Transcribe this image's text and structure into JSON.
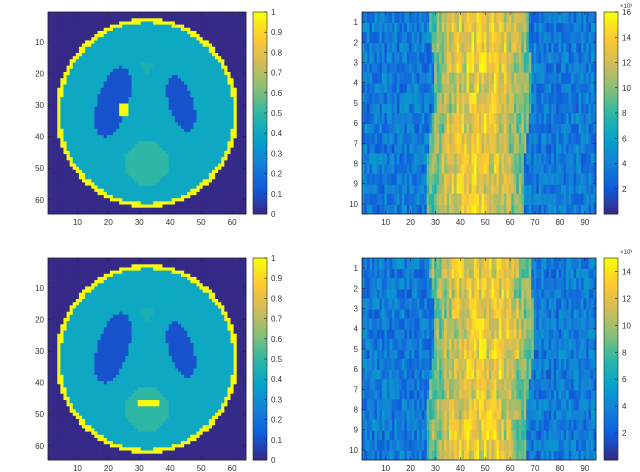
{
  "colormap": {
    "name": "parula",
    "stops": [
      "#352a87",
      "#0f5cdd",
      "#1481d6",
      "#06a4ca",
      "#2eb7a4",
      "#87bf77",
      "#d1bb59",
      "#fec832",
      "#f9fb0e"
    ]
  },
  "chart_data": [
    {
      "type": "heatmap",
      "title": "",
      "xlabel": "",
      "ylabel": "",
      "xlim": [
        0.5,
        64.5
      ],
      "ylim": [
        0.5,
        64.5
      ],
      "xticks": [
        10,
        20,
        30,
        40,
        50,
        60
      ],
      "yticks": [
        10,
        20,
        30,
        40,
        50,
        60
      ],
      "ytick_labels": [
        "10",
        "20",
        "30",
        "40",
        "50",
        "60"
      ],
      "colorbar": {
        "range": [
          0,
          1
        ],
        "ticks": [
          0,
          0.1,
          0.2,
          0.3,
          0.4,
          0.5,
          0.6,
          0.7,
          0.8,
          0.9,
          1
        ],
        "tick_labels": [
          "0",
          "0.1",
          "0.2",
          "0.3",
          "0.4",
          "0.5",
          "0.6",
          "0.7",
          "0.8",
          "0.9",
          "1"
        ]
      },
      "image": "Shepp-Logan phantom, 64 x 64",
      "regions": [
        {
          "shape": "ellipse-ring",
          "value": 1.0,
          "cx": 32.5,
          "cy": 32.5,
          "rx": 29.5,
          "ry": 30.0
        },
        {
          "shape": "ellipse",
          "value": 0.4,
          "cx": 32.5,
          "cy": 32.5,
          "rx": 28.0,
          "ry": 28.6
        },
        {
          "shape": "ellipse",
          "value": 0.1,
          "cx": 21.5,
          "cy": 29.0,
          "rx": 5.0,
          "ry": 11.5,
          "rotation": 18
        },
        {
          "shape": "ellipse",
          "value": 0.1,
          "cx": 43.5,
          "cy": 29.5,
          "rx": 4.0,
          "ry": 9.0,
          "rotation": -18
        },
        {
          "shape": "ellipse",
          "value": 0.5,
          "cx": 32.5,
          "cy": 48.5,
          "rx": 7.0,
          "ry": 7.0
        },
        {
          "shape": "rect",
          "value": 1.0,
          "x0": 23.5,
          "x1": 26.5,
          "y0": 29.5,
          "y1": 33.0
        },
        {
          "shape": "rect",
          "value": 0.45,
          "x0": 31.0,
          "x1": 34.0,
          "y0": 17.0,
          "y1": 18.0
        },
        {
          "shape": "rect",
          "value": 0.45,
          "x0": 32.0,
          "x1": 33.0,
          "y0": 18.0,
          "y1": 20.0
        }
      ]
    },
    {
      "type": "heatmap",
      "title": "",
      "xlabel": "",
      "ylabel": "",
      "xlim": [
        0.5,
        94.5
      ],
      "ylim": [
        0.5,
        10.5
      ],
      "xticks": [
        10,
        20,
        30,
        40,
        50,
        60,
        70,
        80,
        90
      ],
      "yticks": [
        1,
        2,
        3,
        4,
        5,
        6,
        7,
        8,
        9,
        10
      ],
      "ytick_labels": [
        "1",
        "2",
        "3",
        "4",
        "5",
        "6",
        "7",
        "8",
        "9",
        "10"
      ],
      "colorbar": {
        "range": [
          0,
          16
        ],
        "ticks": [
          2,
          4,
          6,
          8,
          10,
          12,
          14,
          16
        ],
        "tick_labels": [
          "2",
          "4",
          "6",
          "8",
          "10",
          "12",
          "14",
          "16"
        ],
        "exponent": "×10³"
      },
      "band": {
        "x_start": 28,
        "x_end": 67
      },
      "rows": 10,
      "cols": 94,
      "seed": 7
    },
    {
      "type": "heatmap",
      "title": "",
      "xlabel": "",
      "ylabel": "",
      "xlim": [
        0.5,
        64.5
      ],
      "ylim": [
        0.5,
        64.5
      ],
      "xticks": [
        10,
        20,
        30,
        40,
        50,
        60
      ],
      "yticks": [
        10,
        20,
        30,
        40,
        50,
        60
      ],
      "ytick_labels": [
        "10",
        "20",
        "30",
        "40",
        "50",
        "60"
      ],
      "colorbar": {
        "range": [
          0,
          1
        ],
        "ticks": [
          0,
          0.1,
          0.2,
          0.3,
          0.4,
          0.5,
          0.6,
          0.7,
          0.8,
          0.9,
          1
        ],
        "tick_labels": [
          "0",
          "0.1",
          "0.2",
          "0.3",
          "0.4",
          "0.5",
          "0.6",
          "0.7",
          "0.8",
          "0.9",
          "1"
        ]
      },
      "image": "Shepp-Logan phantom variant, 64 x 64",
      "regions": [
        {
          "shape": "ellipse-ring",
          "value": 1.0,
          "cx": 32.5,
          "cy": 32.5,
          "rx": 29.5,
          "ry": 30.0
        },
        {
          "shape": "ellipse",
          "value": 0.4,
          "cx": 32.5,
          "cy": 32.5,
          "rx": 28.0,
          "ry": 28.6
        },
        {
          "shape": "ellipse",
          "value": 0.1,
          "cx": 21.5,
          "cy": 29.0,
          "rx": 5.0,
          "ry": 11.5,
          "rotation": 18
        },
        {
          "shape": "ellipse",
          "value": 0.1,
          "cx": 43.5,
          "cy": 29.5,
          "rx": 4.0,
          "ry": 9.0,
          "rotation": -18
        },
        {
          "shape": "ellipse",
          "value": 0.5,
          "cx": 32.5,
          "cy": 48.5,
          "rx": 7.0,
          "ry": 7.0
        },
        {
          "shape": "rect",
          "value": 1.0,
          "x0": 30.0,
          "x1": 36.0,
          "y0": 46.0,
          "y1": 47.5
        },
        {
          "shape": "rect",
          "value": 0.45,
          "x0": 31.0,
          "x1": 34.0,
          "y0": 17.0,
          "y1": 18.0
        },
        {
          "shape": "rect",
          "value": 0.45,
          "x0": 32.0,
          "x1": 33.0,
          "y0": 18.0,
          "y1": 20.0
        }
      ]
    },
    {
      "type": "heatmap",
      "title": "",
      "xlabel": "",
      "ylabel": "",
      "xlim": [
        0.5,
        94.5
      ],
      "ylim": [
        0.5,
        10.5
      ],
      "xticks": [
        10,
        20,
        30,
        40,
        50,
        60,
        70,
        80,
        90
      ],
      "yticks": [
        1,
        2,
        3,
        4,
        5,
        6,
        7,
        8,
        9,
        10
      ],
      "ytick_labels": [
        "1",
        "2",
        "3",
        "4",
        "5",
        "6",
        "7",
        "8",
        "9",
        "10"
      ],
      "colorbar": {
        "range": [
          0,
          15
        ],
        "ticks": [
          2,
          4,
          6,
          8,
          10,
          12,
          14
        ],
        "tick_labels": [
          "2",
          "4",
          "6",
          "8",
          "10",
          "12",
          "14"
        ],
        "exponent": "×10³"
      },
      "band": {
        "x_start": 28,
        "x_end": 68
      },
      "rows": 10,
      "cols": 94,
      "seed": 13
    }
  ]
}
